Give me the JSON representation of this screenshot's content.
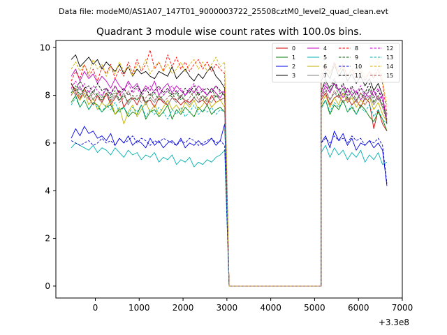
{
  "chart_data": {
    "type": "line",
    "suptitle": "Data file: modeM0/AS1A07_147T01_9000003722_25508cztM0_level2_quad_clean.evt",
    "title": "Quadrant 3 module wise count rates with 100.0s bins.",
    "xlabel": "",
    "ylabel": "",
    "x_offset_label": "+3.3e8",
    "xlim": [
      -900,
      7000
    ],
    "ylim": [
      -0.5,
      10.3
    ],
    "xticks": [
      0,
      1000,
      2000,
      3000,
      4000,
      5000,
      6000,
      7000
    ],
    "yticks": [
      0,
      2,
      4,
      6,
      8,
      10
    ],
    "legend": {
      "placement": "top-right",
      "columns": 4
    },
    "segments": [
      {
        "x_start": -550,
        "x_end": 2950
      },
      {
        "x_start": 5150,
        "x_end": 6650
      }
    ],
    "gap": {
      "x_start": 3050,
      "x_end": 5150,
      "value": 0
    },
    "series": [
      {
        "name": "0",
        "color": "#d00000",
        "dash": "solid",
        "seg1": [
          8.5,
          8.1,
          7.8,
          8.3,
          7.9,
          7.6,
          8.0,
          7.7,
          8.1,
          7.6,
          7.9,
          8.2,
          7.5,
          7.8,
          7.9,
          7.6,
          8.0,
          7.7,
          7.8,
          7.5,
          7.9,
          7.7,
          7.6,
          7.9,
          7.8,
          7.6,
          7.8,
          7.7,
          7.9,
          7.7,
          7.8,
          7.6,
          8.0,
          7.7,
          7.8,
          7.9
        ],
        "seg2": [
          7.8,
          8.1,
          7.6,
          7.9,
          8.0,
          7.7,
          7.9,
          7.6,
          7.8,
          7.5,
          7.9,
          7.7,
          6.6,
          7.4,
          6.8,
          6.5
        ]
      },
      {
        "name": "1",
        "color": "#008000",
        "dash": "solid",
        "seg1": [
          7.7,
          8.0,
          7.5,
          7.8,
          7.4,
          7.7,
          7.6,
          7.3,
          7.5,
          7.6,
          7.2,
          7.4,
          7.5,
          7.1,
          7.3,
          7.2,
          7.6,
          7.0,
          7.3,
          7.4,
          7.1,
          7.3,
          7.6,
          7.0,
          7.4,
          7.2,
          7.5,
          7.3,
          7.1,
          7.5,
          7.3,
          7.6,
          7.2,
          7.4,
          7.5,
          7.3
        ],
        "seg2": [
          7.5,
          7.8,
          7.2,
          7.6,
          7.4,
          7.8,
          7.3,
          7.5,
          7.2,
          7.6,
          7.4,
          7.1,
          6.9,
          7.3,
          7.0,
          6.5
        ]
      },
      {
        "name": "2",
        "color": "#0000ee",
        "dash": "solid",
        "seg1": [
          6.2,
          6.6,
          6.3,
          6.7,
          6.4,
          6.5,
          6.2,
          6.3,
          6.1,
          6.4,
          5.9,
          6.2,
          6.0,
          6.3,
          5.9,
          6.1,
          6.0,
          5.8,
          6.2,
          5.9,
          6.1,
          5.8,
          6.0,
          6.1,
          5.9,
          6.2,
          5.8,
          6.0,
          5.9,
          6.1,
          5.9,
          6.0,
          6.2,
          5.9,
          6.1,
          6.8
        ],
        "seg2": [
          6.0,
          6.3,
          5.8,
          6.5,
          6.1,
          6.4,
          5.9,
          6.2,
          5.7,
          6.0,
          5.9,
          6.1,
          5.8,
          6.0,
          5.7,
          4.2
        ]
      },
      {
        "name": "3",
        "color": "#000000",
        "dash": "solid",
        "seg1": [
          9.5,
          9.7,
          9.2,
          9.4,
          9.6,
          9.3,
          9.5,
          9.1,
          9.4,
          9.2,
          9.0,
          9.3,
          8.9,
          9.2,
          8.8,
          9.1,
          8.9,
          9.0,
          8.8,
          8.7,
          9.0,
          8.9,
          8.8,
          9.2,
          8.7,
          8.9,
          9.1,
          8.8,
          8.6,
          8.9,
          8.7,
          9.0,
          9.2,
          8.8,
          8.6,
          8.3
        ],
        "seg2": [
          8.6,
          9.0,
          8.7,
          9.3,
          8.8,
          9.1,
          8.6,
          8.9,
          8.5,
          8.8,
          8.4,
          8.7,
          8.2,
          8.5,
          8.0,
          6.8
        ]
      },
      {
        "name": "4",
        "color": "#c000c0",
        "dash": "solid",
        "seg1": [
          8.8,
          9.1,
          8.6,
          9.0,
          8.7,
          8.9,
          8.5,
          8.8,
          8.6,
          8.3,
          8.7,
          8.4,
          8.2,
          8.6,
          8.3,
          8.5,
          8.1,
          8.4,
          8.2,
          8.6,
          8.0,
          8.3,
          8.5,
          8.1,
          8.4,
          8.2,
          8.0,
          8.3,
          8.1,
          8.4,
          8.2,
          8.0,
          8.3,
          8.1,
          7.9,
          8.2
        ],
        "seg2": [
          8.0,
          8.4,
          8.1,
          8.5,
          8.2,
          7.9,
          8.3,
          8.0,
          8.2,
          7.8,
          8.1,
          7.9,
          8.2,
          7.8,
          8.0,
          6.9
        ]
      },
      {
        "name": "5",
        "color": "#00b0b0",
        "dash": "solid",
        "seg1": [
          5.8,
          6.0,
          5.9,
          5.8,
          5.7,
          5.9,
          5.6,
          5.8,
          5.7,
          5.5,
          5.8,
          5.6,
          5.4,
          5.7,
          5.5,
          5.6,
          5.3,
          5.5,
          5.4,
          5.6,
          5.2,
          5.4,
          5.3,
          5.5,
          5.1,
          5.3,
          5.2,
          5.4,
          5.0,
          5.2,
          5.1,
          5.3,
          5.2,
          5.4,
          5.5,
          5.7
        ],
        "seg2": [
          5.6,
          5.9,
          5.4,
          5.8,
          5.5,
          5.7,
          5.3,
          5.6,
          5.4,
          5.7,
          5.2,
          5.5,
          5.3,
          5.6,
          5.1,
          5.2
        ]
      },
      {
        "name": "6",
        "color": "#c0b000",
        "dash": "solid",
        "seg1": [
          8.0,
          8.3,
          7.8,
          8.1,
          7.6,
          7.9,
          7.4,
          7.7,
          7.5,
          7.8,
          7.2,
          7.5,
          6.8,
          7.3,
          7.6,
          7.1,
          7.4,
          7.7,
          7.3,
          7.6,
          7.2,
          7.5,
          7.8,
          7.4,
          7.6,
          7.3,
          7.7,
          7.5,
          7.8,
          7.4,
          7.6,
          7.9,
          7.5,
          7.7,
          7.8,
          7.5
        ],
        "seg2": [
          7.6,
          8.0,
          7.5,
          7.9,
          7.6,
          8.1,
          7.7,
          7.9,
          7.5,
          7.8,
          7.6,
          7.9,
          7.4,
          7.7,
          7.2,
          6.9
        ]
      },
      {
        "name": "7",
        "color": "#808080",
        "dash": "solid",
        "seg1": [
          8.3,
          8.0,
          8.4,
          7.9,
          8.2,
          7.8,
          8.1,
          7.9,
          8.3,
          7.7,
          8.0,
          7.8,
          8.1,
          7.6,
          7.9,
          7.8,
          8.0,
          7.6,
          7.9,
          7.7,
          8.0,
          7.8,
          7.6,
          7.9,
          7.7,
          8.0,
          7.8,
          7.6,
          7.9,
          7.7,
          8.0,
          7.8,
          7.7,
          8.0,
          7.8,
          7.9
        ],
        "seg2": [
          7.9,
          8.2,
          7.8,
          8.1,
          7.9,
          8.3,
          7.8,
          8.0,
          7.7,
          8.1,
          7.8,
          8.0,
          7.6,
          7.9,
          7.5,
          7.0
        ]
      },
      {
        "name": "8",
        "color": "#ff0000",
        "dash": "dashed",
        "seg1": [
          8.6,
          9.0,
          8.7,
          9.3,
          8.8,
          9.1,
          8.6,
          9.2,
          8.9,
          9.3,
          8.7,
          9.1,
          8.8,
          9.4,
          8.9,
          9.5,
          9.0,
          9.3,
          9.9,
          9.1,
          9.4,
          9.0,
          9.7,
          9.2,
          9.6,
          9.1,
          9.4,
          9.0,
          9.3,
          9.5,
          9.1,
          9.4,
          9.0,
          9.3,
          9.1,
          8.9
        ],
        "seg2": [
          8.8,
          9.2,
          8.9,
          9.4,
          9.0,
          9.3,
          8.8,
          9.1,
          8.7,
          9.0,
          8.6,
          9.0,
          8.7,
          9.1,
          8.5,
          7.2
        ]
      },
      {
        "name": "9",
        "color": "#006400",
        "dash": "dashed",
        "seg1": [
          8.1,
          8.4,
          8.0,
          8.3,
          7.9,
          8.2,
          8.0,
          7.8,
          8.1,
          7.9,
          8.2,
          7.8,
          8.0,
          7.7,
          8.0,
          7.8,
          8.1,
          7.7,
          7.9,
          8.1,
          7.8,
          8.0,
          8.2,
          7.9,
          8.1,
          7.8,
          8.0,
          8.2,
          7.9,
          8.1,
          7.8,
          8.0,
          8.3,
          7.9,
          8.1,
          8.0
        ],
        "seg2": [
          8.1,
          8.7,
          8.2,
          8.5,
          8.0,
          8.3,
          7.9,
          8.2,
          7.8,
          8.1,
          7.9,
          8.3,
          7.7,
          8.0,
          7.6,
          7.1
        ]
      },
      {
        "name": "10",
        "color": "#0000cc",
        "dash": "dashed",
        "seg1": [
          6.1,
          6.0,
          5.9,
          6.0,
          6.1,
          5.9,
          6.0,
          6.2,
          6.0,
          6.1,
          5.9,
          6.2,
          6.0,
          6.1,
          6.3,
          6.0,
          6.2,
          6.1,
          5.9,
          6.1,
          6.0,
          6.2,
          6.1,
          6.0,
          5.9,
          6.1,
          6.0,
          6.2,
          6.1,
          5.9,
          6.0,
          6.1,
          6.2,
          6.0,
          6.1,
          5.9
        ],
        "seg2": [
          6.0,
          6.2,
          6.0,
          6.3,
          6.1,
          6.2,
          6.0,
          6.3,
          6.1,
          6.2,
          5.9,
          6.1,
          6.0,
          6.2,
          5.9,
          4.3
        ]
      },
      {
        "name": "11",
        "color": "#000000",
        "dash": "dashed",
        "seg1": [
          8.5,
          8.2,
          8.6,
          8.3,
          8.4,
          8.1,
          8.5,
          8.2,
          8.3,
          8.0,
          8.4,
          8.1,
          8.3,
          8.0,
          8.2,
          8.4,
          8.1,
          8.3,
          8.0,
          8.2,
          8.4,
          8.1,
          8.3,
          8.0,
          8.2,
          7.9,
          8.3,
          8.1,
          8.4,
          8.0,
          8.2,
          8.3,
          8.1,
          8.4,
          8.2,
          8.0
        ],
        "seg2": [
          8.2,
          8.6,
          8.3,
          8.7,
          8.2,
          8.5,
          8.1,
          8.4,
          8.0,
          8.3,
          8.1,
          8.5,
          7.9,
          8.2,
          7.8,
          7.0
        ]
      },
      {
        "name": "12",
        "color": "#cc00cc",
        "dash": "dashed",
        "seg1": [
          8.3,
          8.6,
          8.2,
          8.5,
          8.1,
          8.4,
          8.2,
          8.0,
          8.3,
          8.1,
          8.4,
          8.0,
          8.2,
          8.5,
          8.1,
          8.3,
          8.0,
          8.2,
          8.4,
          8.1,
          8.3,
          8.0,
          8.2,
          8.4,
          8.1,
          8.3,
          8.0,
          8.2,
          8.5,
          8.1,
          8.3,
          8.0,
          8.2,
          8.4,
          8.1,
          8.2
        ],
        "seg2": [
          8.2,
          8.5,
          8.1,
          8.6,
          8.2,
          8.4,
          8.0,
          8.3,
          8.1,
          8.4,
          7.9,
          8.2,
          8.0,
          8.3,
          7.8,
          7.0
        ]
      },
      {
        "name": "13",
        "color": "#00b0b0",
        "dash": "dashed",
        "seg1": [
          7.6,
          7.9,
          7.5,
          7.8,
          7.4,
          7.7,
          7.5,
          7.3,
          7.6,
          7.4,
          7.7,
          7.3,
          7.5,
          7.2,
          7.5,
          7.3,
          7.6,
          7.1,
          7.4,
          7.2,
          7.5,
          7.3,
          7.0,
          7.4,
          7.2,
          7.5,
          7.1,
          7.3,
          7.6,
          7.2,
          7.4,
          7.3,
          7.5,
          7.2,
          7.4,
          7.3
        ],
        "seg2": [
          7.4,
          7.8,
          7.3,
          7.7,
          7.5,
          7.8,
          7.3,
          7.6,
          7.2,
          7.5,
          7.3,
          7.6,
          7.1,
          7.4,
          7.0,
          6.8
        ]
      },
      {
        "name": "14",
        "color": "#d0b000",
        "dash": "dashed",
        "seg1": [
          9.1,
          9.4,
          9.0,
          9.3,
          8.9,
          9.5,
          9.1,
          9.3,
          8.8,
          9.2,
          8.9,
          9.4,
          9.0,
          9.2,
          8.8,
          9.3,
          9.1,
          9.5,
          8.9,
          9.2,
          9.4,
          9.0,
          9.3,
          8.9,
          9.1,
          9.4,
          9.0,
          9.3,
          9.5,
          9.1,
          9.4,
          9.0,
          9.3,
          9.6,
          9.2,
          9.4
        ],
        "seg2": [
          9.0,
          9.4,
          8.9,
          9.3,
          9.0,
          9.2,
          8.8,
          9.1,
          8.9,
          9.2,
          8.7,
          9.0,
          8.8,
          9.6,
          8.6,
          7.6
        ]
      },
      {
        "name": "15",
        "color": "#a05050",
        "dash": "dashed",
        "seg1": [
          8.0,
          8.3,
          7.9,
          8.2,
          7.8,
          8.1,
          7.9,
          7.7,
          8.0,
          7.8,
          8.1,
          7.7,
          7.9,
          8.2,
          7.8,
          8.0,
          7.7,
          7.9,
          8.1,
          7.8,
          8.0,
          7.7,
          7.9,
          8.1,
          7.8,
          8.0,
          7.7,
          7.9,
          8.2,
          7.8,
          8.0,
          7.7,
          7.9,
          8.1,
          7.8,
          7.9
        ],
        "seg2": [
          7.9,
          8.3,
          7.8,
          8.2,
          7.9,
          8.1,
          7.7,
          8.0,
          7.8,
          8.1,
          7.6,
          7.9,
          7.7,
          8.0,
          7.5,
          6.9
        ]
      }
    ]
  }
}
